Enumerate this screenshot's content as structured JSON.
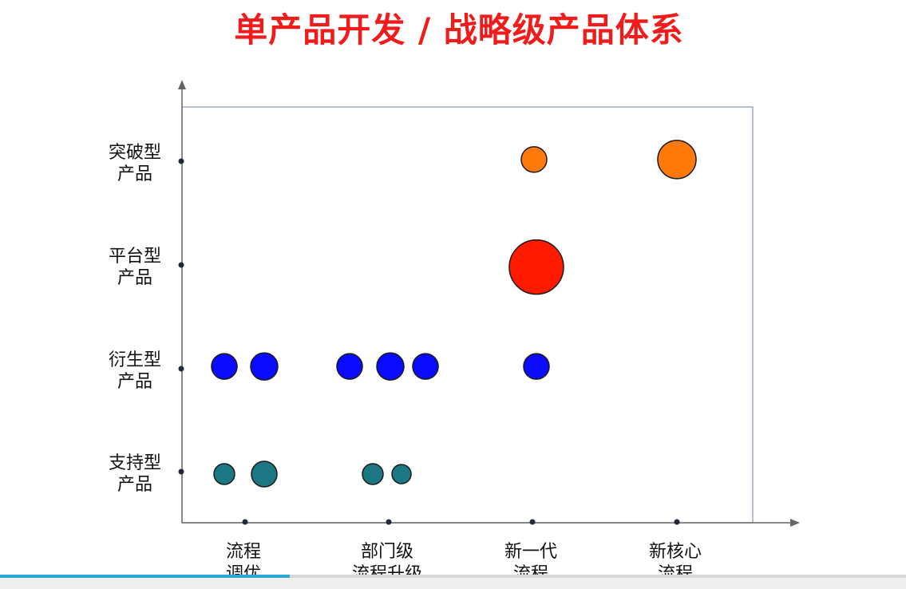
{
  "chart_data": {
    "type": "scatter",
    "title": "单产品开发 / 战略级产品体系",
    "x_categories": [
      {
        "line1": "流程",
        "line2": "调优"
      },
      {
        "line1": "部门级",
        "line2": "流程升级"
      },
      {
        "line1": "新一代",
        "line2": "流程"
      },
      {
        "line1": "新核心",
        "line2": "流程"
      }
    ],
    "y_categories": [
      {
        "line1": "支持型",
        "line2": "产品"
      },
      {
        "line1": "衍生型",
        "line2": "产品"
      },
      {
        "line1": "平台型",
        "line2": "产品"
      },
      {
        "line1": "突破型",
        "line2": "产品"
      }
    ],
    "points": [
      {
        "x": 0.65,
        "y": 3.04,
        "size": 16,
        "color": "#ff7a0a"
      },
      {
        "x": 3.0,
        "y": 3.04,
        "size": 24,
        "color": "#ff7a0a"
      },
      {
        "x": 0.7,
        "y": 2.0,
        "size": 34,
        "color": "#ff1a00"
      },
      {
        "x": -2.65,
        "y": 1.04,
        "size": 16,
        "color": "#0a0aff"
      },
      {
        "x": -2.45,
        "y": 1.04,
        "size": 17,
        "color": "#0a0aff"
      },
      {
        "x": -0.5,
        "y": 1.04,
        "size": 16,
        "color": "#0a0aff"
      },
      {
        "x": -0.25,
        "y": 1.04,
        "size": 17,
        "color": "#0a0aff"
      },
      {
        "x": 0.05,
        "y": 1.04,
        "size": 16,
        "color": "#0a0aff"
      },
      {
        "x": 0.7,
        "y": 1.04,
        "size": 16,
        "color": "#0a0aff"
      },
      {
        "x": -2.65,
        "y": 0.0,
        "size": 13,
        "color": "#1a7783"
      },
      {
        "x": -2.45,
        "y": 0.0,
        "size": 16,
        "color": "#1a7783"
      },
      {
        "x": -0.35,
        "y": 0.0,
        "size": 13,
        "color": "#1a7783"
      },
      {
        "x": -0.1,
        "y": 0.0,
        "size": 12,
        "color": "#1a7783"
      }
    ],
    "grid": false,
    "colors": {
      "title": "#f01c1c",
      "axis": "#666666",
      "frame": "#8899aa",
      "progress": "#2aa7d9"
    }
  },
  "progress": 0.32
}
